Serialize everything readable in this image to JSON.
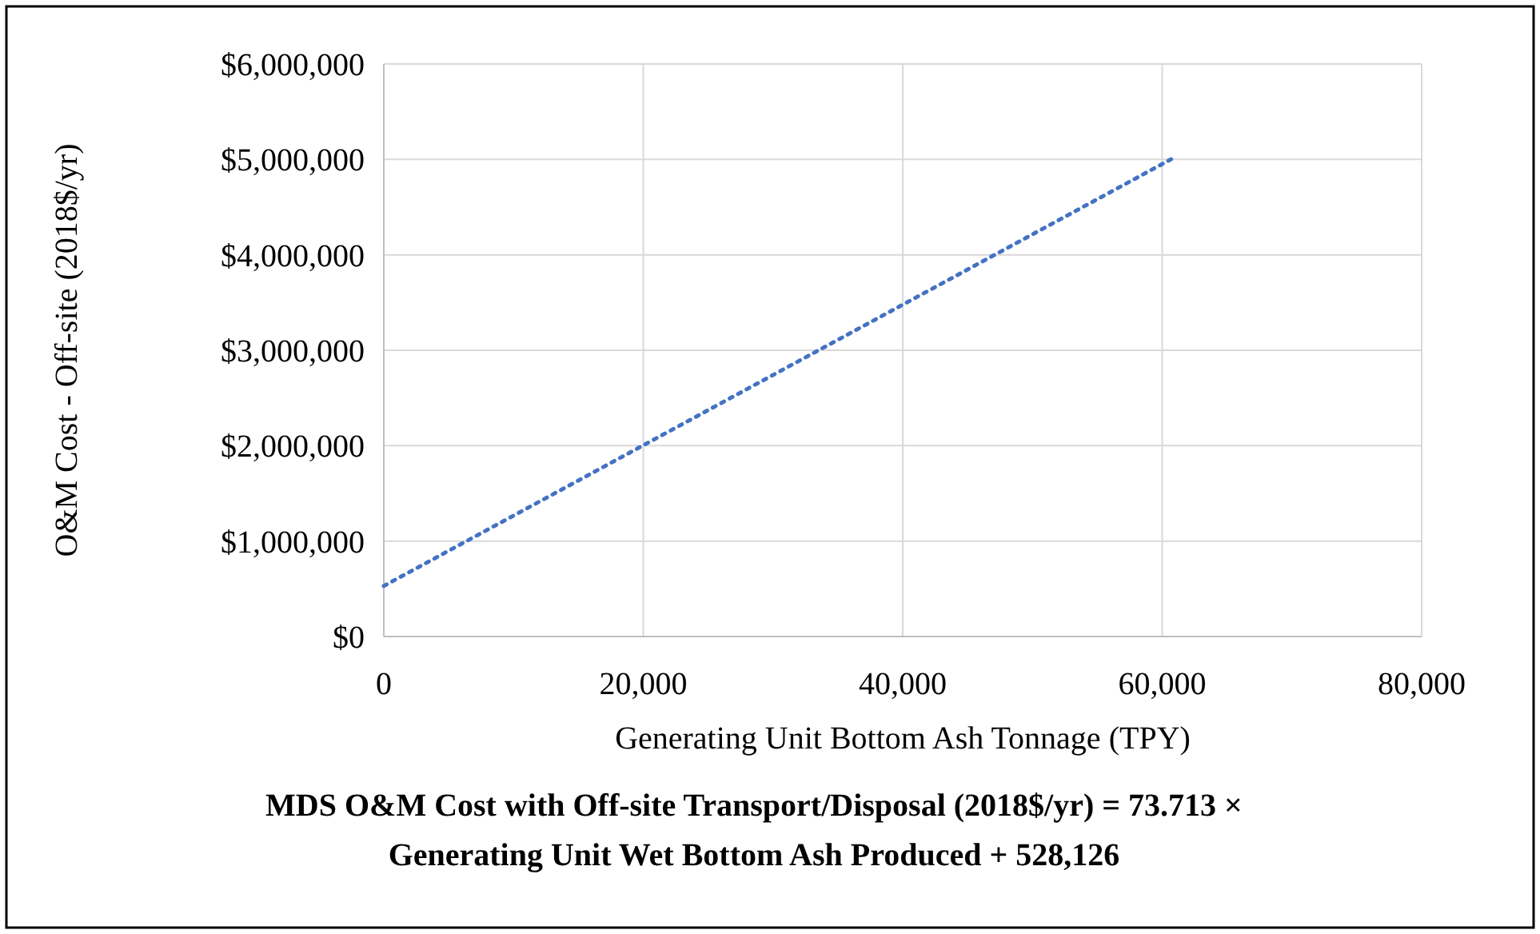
{
  "chart_data": {
    "type": "line",
    "xlabel": "Generating Unit Bottom Ash Tonnage (TPY)",
    "ylabel": "O&M Cost - Off-site (2018$/yr)",
    "x": [
      0,
      61000
    ],
    "series": [
      {
        "color": "#4472c4",
        "values": [
          530000,
          5025000
        ]
      }
    ],
    "line_style": "dotted",
    "marker": "none",
    "grid": true,
    "xlim": [
      0,
      80000
    ],
    "xticks": [
      {
        "value": 0,
        "label": "0"
      },
      {
        "value": 20000,
        "label": "20,000"
      },
      {
        "value": 40000,
        "label": "40,000"
      },
      {
        "value": 60000,
        "label": "60,000"
      },
      {
        "value": 80000,
        "label": "80,000"
      }
    ],
    "ylim": [
      0,
      6000000
    ],
    "yticks": [
      {
        "value": 0,
        "label": "$0"
      },
      {
        "value": 1000000,
        "label": "$1,000,000"
      },
      {
        "value": 2000000,
        "label": "$2,000,000"
      },
      {
        "value": 3000000,
        "label": "$3,000,000"
      },
      {
        "value": 4000000,
        "label": "$4,000,000"
      },
      {
        "value": 5000000,
        "label": "$5,000,000"
      },
      {
        "value": 6000000,
        "label": "$6,000,000"
      }
    ],
    "annotations": [
      "MDS O&M Cost with Off-site Transport/Disposal  (2018$/yr) = 73.713 ×",
      "Generating Unit Wet Bottom Ash Produced + 528,126"
    ]
  }
}
